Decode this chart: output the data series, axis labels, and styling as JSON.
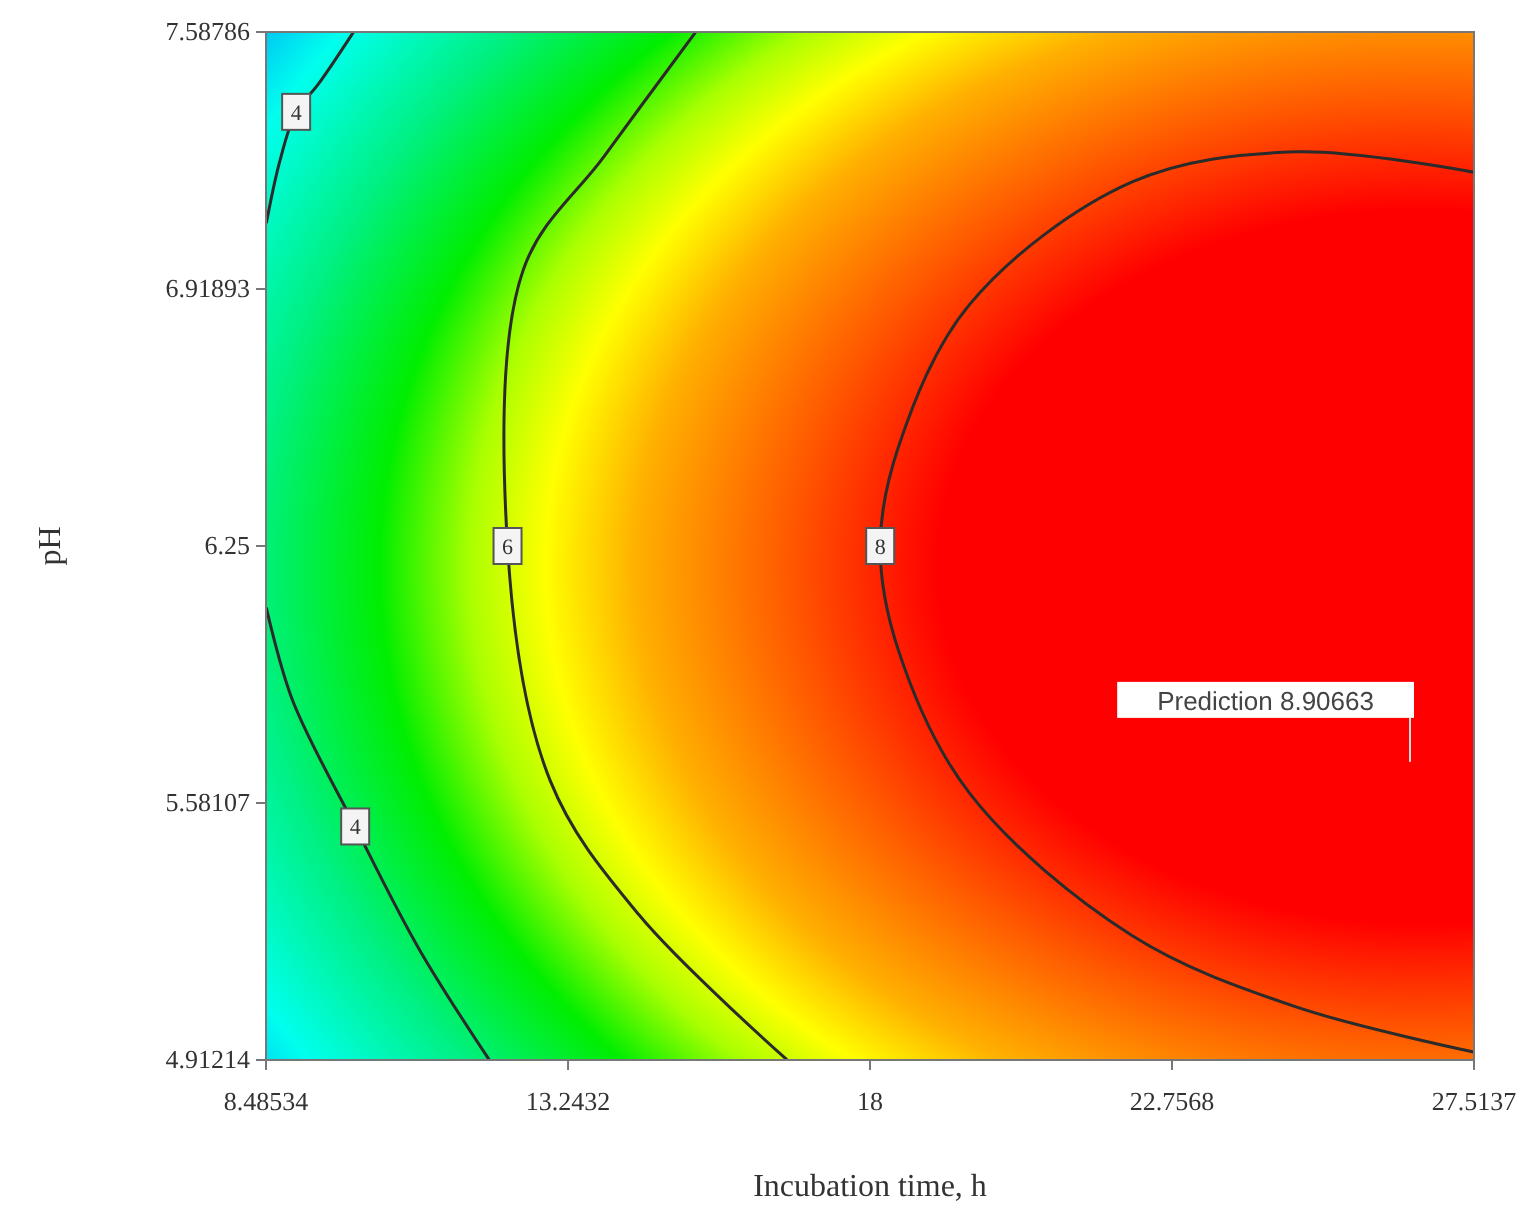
{
  "chart_data": {
    "type": "line",
    "xlabel": "Incubation time, h",
    "ylabel": "pH",
    "xlim": [
      8.48534,
      27.5137
    ],
    "ylim": [
      4.91214,
      7.58786
    ],
    "xticks": [
      8.48534,
      13.2432,
      18,
      22.7568,
      27.5137
    ],
    "yticks": [
      4.91214,
      5.58107,
      6.25,
      6.91893,
      7.58786
    ],
    "series": [
      {
        "name": "4",
        "color": "#2b2b2b",
        "x": [
          9.86,
          9.3,
          8.96,
          8.7,
          8.49,
          null,
          8.49,
          8.9,
          9.89,
          10.9,
          12.0
        ],
        "values": [
          7.587,
          7.45,
          7.38,
          7.25,
          7.09,
          null,
          6.09,
          5.85,
          5.52,
          5.2,
          4.913
        ]
      },
      {
        "name": "6",
        "color": "#2b2b2b",
        "x": [
          15.25,
          13.82,
          12.54,
          12.29,
          12.96,
          14.36,
          16.69
        ],
        "values": [
          7.587,
          7.266,
          6.97,
          6.25,
          5.64,
          5.29,
          4.913
        ]
      },
      {
        "name": "8",
        "color": "#2b2b2b",
        "x": [
          27.51,
          24.7,
          22.12,
          19.57,
          18.45,
          18.16,
          18.45,
          19.57,
          22.12,
          24.7,
          27.51
        ],
        "values": [
          7.223,
          7.276,
          7.197,
          6.879,
          6.509,
          6.25,
          5.977,
          5.606,
          5.237,
          5.051,
          4.933
        ]
      }
    ],
    "annotations": [
      "Prediction  8.90663"
    ]
  }
}
